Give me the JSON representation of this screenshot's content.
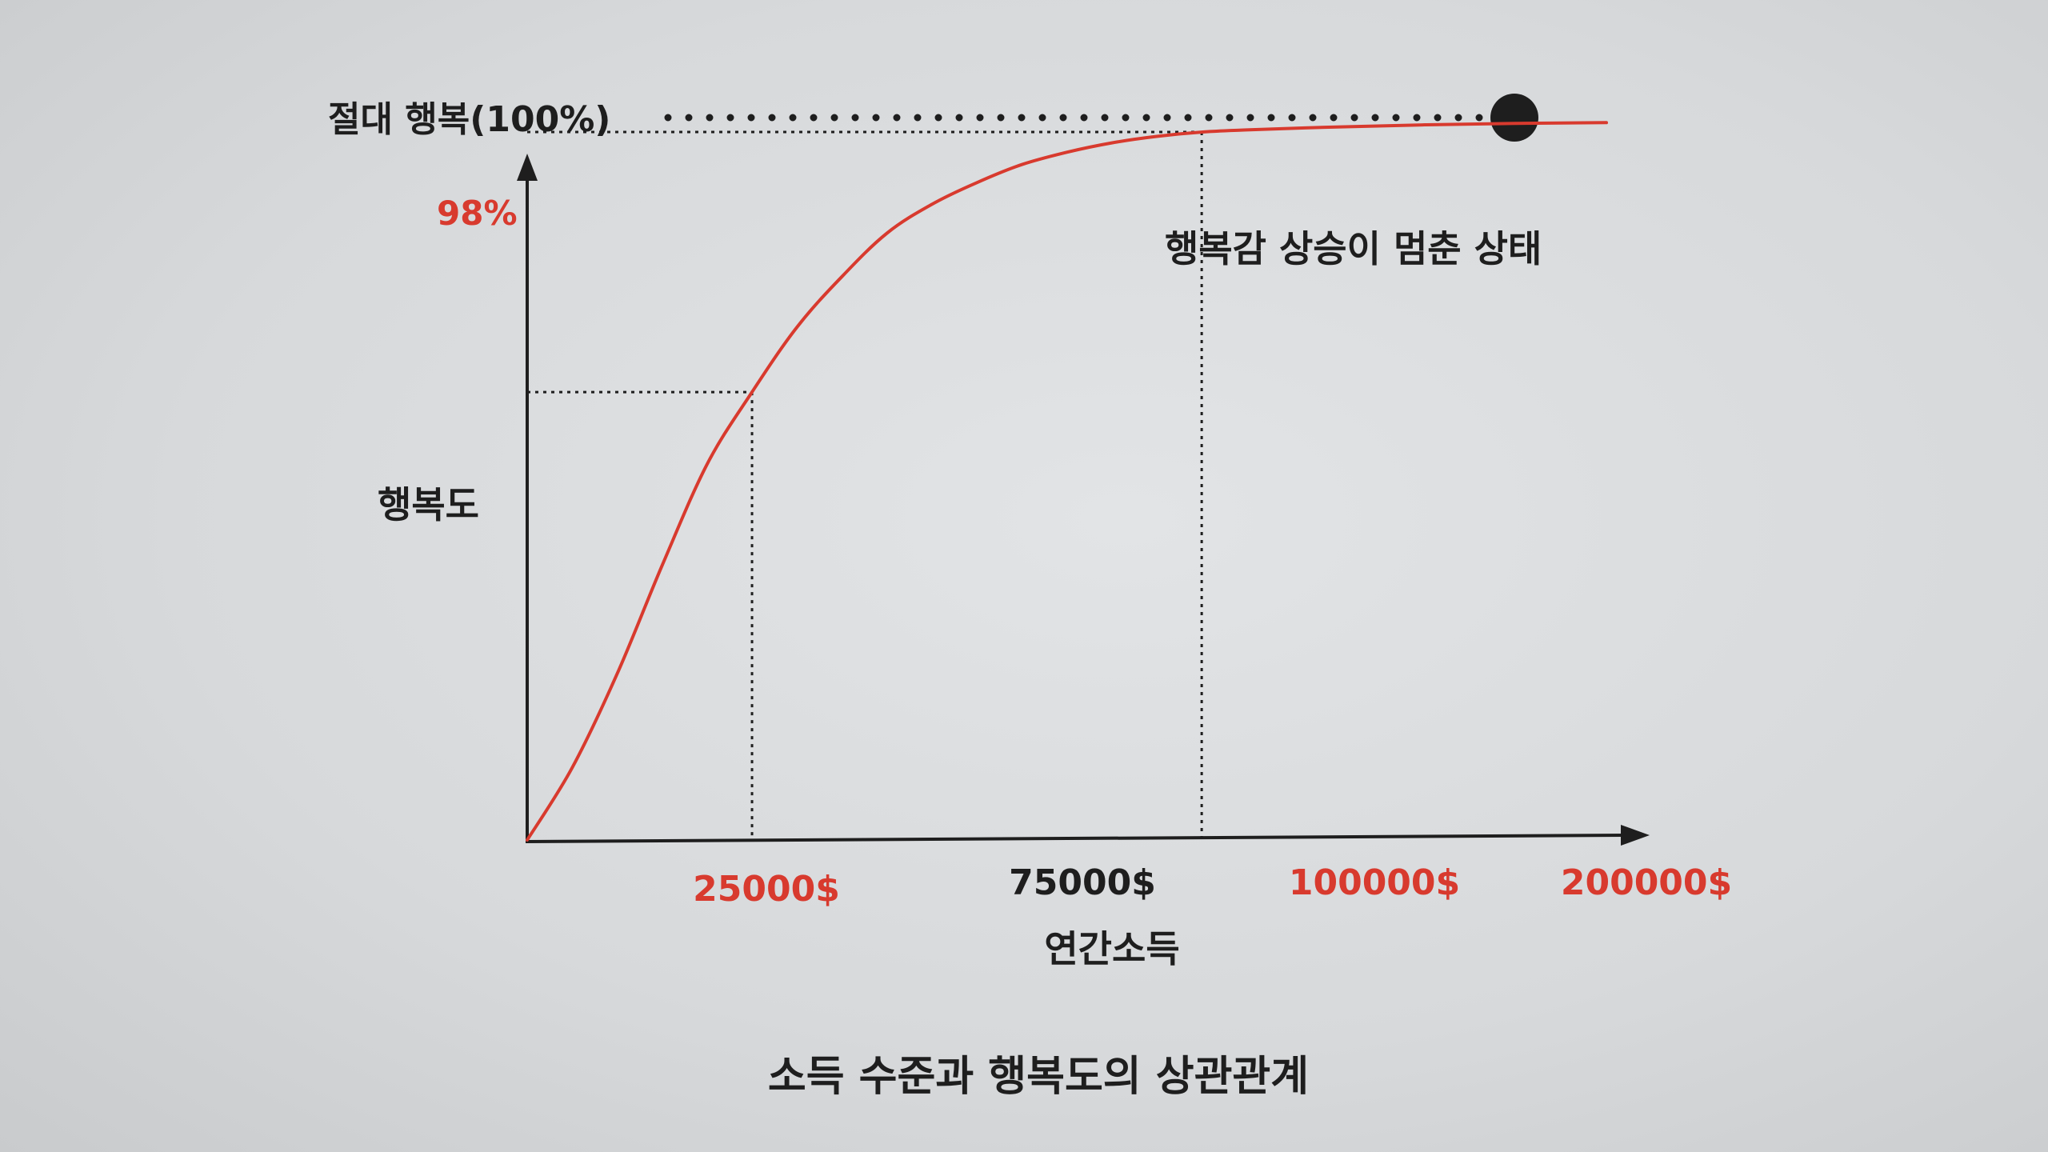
{
  "chart_data": {
    "type": "line",
    "title": "소득 수준과 행복도의 상관관계",
    "xlabel": "연간소득",
    "ylabel": "행복도",
    "absolute_label": "절대 행복(100%)",
    "plateau_label": "행복감 상승이 멈춘 상태",
    "percent_label": "98%",
    "categories": [
      "25000$",
      "75000$",
      "100000$",
      "200000$"
    ],
    "category_colors": [
      "#d83a2e",
      "#1e1e1e",
      "#d83a2e",
      "#d83a2e"
    ],
    "x": [
      0,
      5000,
      10000,
      15000,
      20000,
      25000,
      30000,
      35000,
      40000,
      45000,
      50000,
      55000,
      60000,
      65000,
      70000,
      75000,
      80000,
      90000,
      100000,
      110000,
      120000
    ],
    "series": [
      {
        "color": "#d83a2e",
        "values": [
          0,
          10,
          23,
          38,
          52,
          62,
          71,
          78,
          84,
          88,
          91,
          93.5,
          95.2,
          96.5,
          97.4,
          98,
          98.3,
          98.7,
          99,
          99.2,
          99.3
        ]
      }
    ],
    "xlim": [
      0,
      120000
    ],
    "ylim": [
      0,
      100
    ],
    "markers": {
      "mid": {
        "x": 25000,
        "y": 62
      },
      "plateau": {
        "x": 75000,
        "y": 98
      }
    },
    "colors": {
      "accent": "#d83a2e",
      "ink": "#1e1e1e",
      "background": "#dcdee0"
    },
    "grid": false,
    "legend": "none"
  }
}
